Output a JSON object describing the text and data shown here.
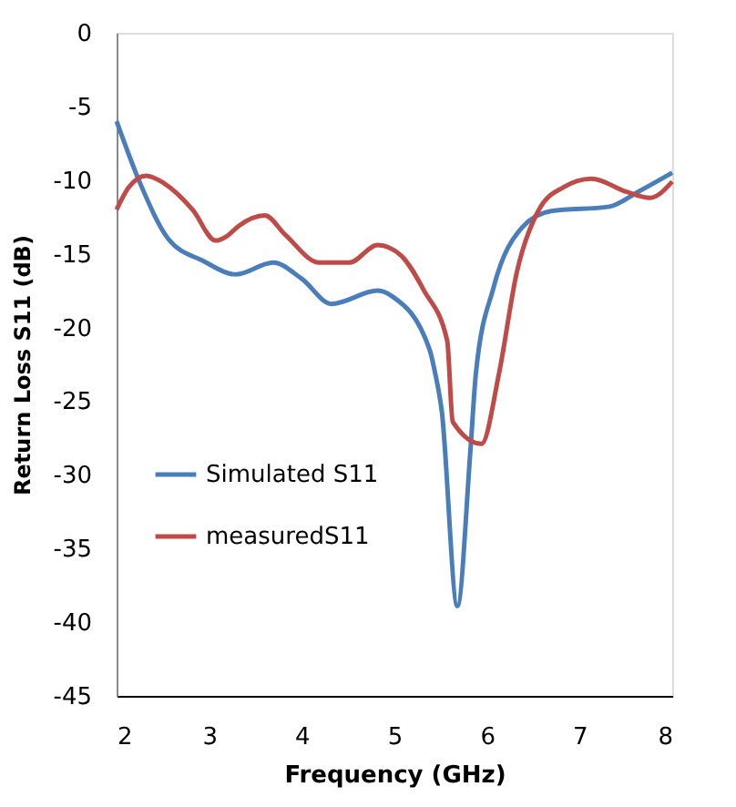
{
  "chart_data": {
    "type": "line",
    "xlabel": "Frequency (GHz)",
    "ylabel": "Return Loss  S11 (dB)",
    "xlim": [
      2,
      8
    ],
    "xticks": [
      2,
      3,
      4,
      5,
      6,
      7,
      8
    ],
    "ylim": [
      -45,
      0
    ],
    "yticks": [
      0,
      -5,
      -10,
      -15,
      -20,
      -25,
      -30,
      -35,
      -40,
      -45
    ],
    "grid": false,
    "legend": "left",
    "line_style": "solid",
    "marker": "none",
    "series": [
      {
        "name": "Simulated S11",
        "color": "#4a7ebb",
        "x": [
          2.0,
          2.26,
          2.56,
          2.94,
          3.29,
          3.69,
          4.0,
          4.32,
          4.82,
          4.98,
          5.38,
          5.44,
          5.51,
          5.68,
          5.82,
          5.88,
          6.07,
          6.38,
          6.69,
          7.32,
          7.63,
          8.0
        ],
        "values": [
          -6.0,
          -10.3,
          -14.0,
          -15.5,
          -16.4,
          -15.6,
          -16.7,
          -18.4,
          -17.5,
          -17.9,
          -21.5,
          -23.1,
          -25.6,
          -38.9,
          -28.4,
          -23.1,
          -17.3,
          -13.2,
          -12.1,
          -11.8,
          -10.8,
          -9.5
        ]
      },
      {
        "name": "measuredS11",
        "color": "#be4b48",
        "x": [
          2.0,
          2.13,
          2.32,
          2.51,
          2.82,
          3.07,
          3.19,
          3.32,
          3.6,
          3.82,
          4.19,
          4.51,
          4.82,
          5.07,
          5.32,
          5.57,
          5.63,
          5.94,
          6.13,
          6.32,
          6.57,
          6.82,
          7.13,
          7.51,
          7.76,
          8.0
        ],
        "values": [
          -12.0,
          -10.5,
          -9.7,
          -10.2,
          -12.0,
          -14.1,
          -13.8,
          -13.1,
          -12.4,
          -13.7,
          -15.6,
          -15.6,
          -14.4,
          -15.1,
          -17.5,
          -20.9,
          -26.4,
          -27.9,
          -23.1,
          -16.3,
          -11.9,
          -10.5,
          -9.9,
          -10.8,
          -11.2,
          -10.1
        ]
      }
    ]
  }
}
